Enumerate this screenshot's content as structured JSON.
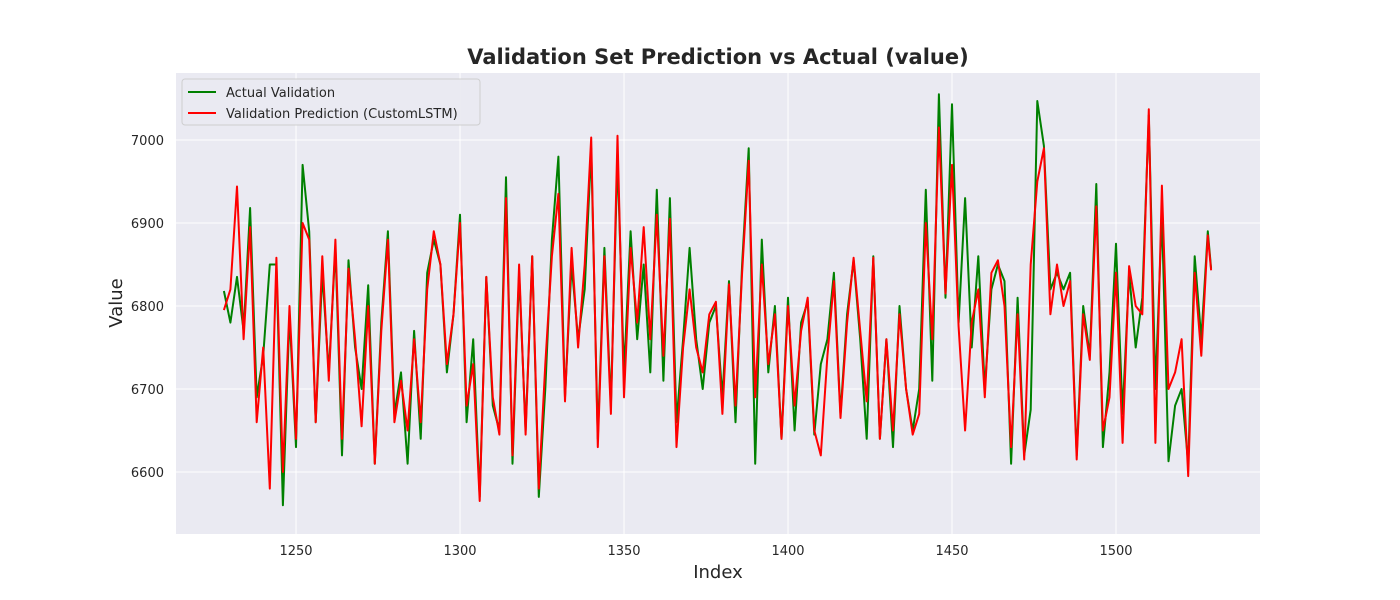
{
  "chart_data": {
    "type": "line",
    "title": "Validation Set Prediction vs Actual (value)",
    "xlabel": "Index",
    "ylabel": "Value",
    "x": [
      1228,
      1230,
      1232,
      1234,
      1236,
      1238,
      1240,
      1242,
      1244,
      1246,
      1248,
      1250,
      1252,
      1254,
      1256,
      1258,
      1260,
      1262,
      1264,
      1266,
      1268,
      1270,
      1272,
      1274,
      1276,
      1278,
      1280,
      1282,
      1284,
      1286,
      1288,
      1290,
      1292,
      1294,
      1296,
      1298,
      1300,
      1302,
      1304,
      1306,
      1308,
      1310,
      1312,
      1314,
      1316,
      1318,
      1320,
      1322,
      1324,
      1326,
      1328,
      1330,
      1332,
      1334,
      1336,
      1338,
      1340,
      1342,
      1344,
      1346,
      1348,
      1350,
      1352,
      1354,
      1356,
      1358,
      1360,
      1362,
      1364,
      1366,
      1368,
      1370,
      1372,
      1374,
      1376,
      1378,
      1380,
      1382,
      1384,
      1386,
      1388,
      1390,
      1392,
      1394,
      1396,
      1398,
      1400,
      1402,
      1404,
      1406,
      1408,
      1410,
      1412,
      1414,
      1416,
      1418,
      1420,
      1422,
      1424,
      1426,
      1428,
      1430,
      1432,
      1434,
      1436,
      1438,
      1440,
      1442,
      1444,
      1446,
      1448,
      1450,
      1452,
      1454,
      1456,
      1458,
      1460,
      1462,
      1464,
      1466,
      1468,
      1470,
      1472,
      1474,
      1476,
      1478,
      1480,
      1482,
      1484,
      1486,
      1488,
      1490,
      1492,
      1494,
      1496,
      1498,
      1500,
      1502,
      1504,
      1506,
      1508,
      1510,
      1512,
      1514,
      1516,
      1518,
      1520,
      1522,
      1524,
      1526,
      1528,
      1529
    ],
    "series": [
      {
        "name": "Actual Validation",
        "color": "#008000",
        "values": [
          6818,
          6780,
          6835,
          6770,
          6918,
          6690,
          6740,
          6850,
          6850,
          6560,
          6790,
          6630,
          6970,
          6890,
          6660,
          6840,
          6720,
          6870,
          6620,
          6855,
          6750,
          6700,
          6825,
          6610,
          6780,
          6890,
          6670,
          6720,
          6610,
          6770,
          6640,
          6840,
          6880,
          6850,
          6720,
          6790,
          6910,
          6660,
          6760,
          6570,
          6835,
          6680,
          6650,
          6955,
          6610,
          6840,
          6650,
          6860,
          6570,
          6700,
          6880,
          6980,
          6690,
          6850,
          6760,
          6820,
          6990,
          6640,
          6870,
          6680,
          6980,
          6720,
          6890,
          6760,
          6850,
          6720,
          6940,
          6710,
          6930,
          6660,
          6760,
          6870,
          6760,
          6700,
          6780,
          6800,
          6690,
          6830,
          6660,
          6850,
          6990,
          6610,
          6880,
          6720,
          6800,
          6640,
          6810,
          6650,
          6780,
          6805,
          6645,
          6730,
          6760,
          6840,
          6670,
          6790,
          6855,
          6760,
          6640,
          6860,
          6640,
          6760,
          6630,
          6800,
          6700,
          6650,
          6700,
          6940,
          6710,
          7055,
          6810,
          7043,
          6780,
          6930,
          6750,
          6860,
          6700,
          6820,
          6850,
          6830,
          6610,
          6810,
          6620,
          6675,
          7047,
          6993,
          6820,
          6840,
          6820,
          6840,
          6620,
          6800,
          6740,
          6947,
          6630,
          6720,
          6875,
          6670,
          6840,
          6750,
          6810,
          7030,
          6700,
          6910,
          6613,
          6680,
          6700,
          6610,
          6860,
          6760,
          6890,
          6845
        ]
      },
      {
        "name": "Validation Prediction (CustomLSTM)",
        "color": "#ff0000",
        "values": [
          6795,
          6820,
          6944,
          6760,
          6895,
          6660,
          6750,
          6580,
          6858,
          6600,
          6800,
          6640,
          6900,
          6880,
          6660,
          6860,
          6710,
          6880,
          6640,
          6845,
          6760,
          6655,
          6800,
          6610,
          6770,
          6880,
          6660,
          6710,
          6650,
          6760,
          6660,
          6820,
          6890,
          6850,
          6730,
          6790,
          6900,
          6680,
          6730,
          6565,
          6835,
          6690,
          6645,
          6930,
          6620,
          6850,
          6645,
          6860,
          6580,
          6730,
          6860,
          6935,
          6685,
          6870,
          6750,
          6850,
          7003,
          6630,
          6860,
          6670,
          7005,
          6690,
          6870,
          6780,
          6895,
          6760,
          6910,
          6740,
          6905,
          6630,
          6750,
          6820,
          6750,
          6720,
          6790,
          6805,
          6670,
          6826,
          6680,
          6840,
          6975,
          6690,
          6850,
          6730,
          6790,
          6640,
          6800,
          6680,
          6770,
          6810,
          6650,
          6620,
          6740,
          6830,
          6665,
          6780,
          6858,
          6770,
          6685,
          6858,
          6640,
          6760,
          6650,
          6790,
          6700,
          6645,
          6670,
          6900,
          6760,
          7015,
          6815,
          6970,
          6775,
          6650,
          6780,
          6820,
          6690,
          6840,
          6855,
          6800,
          6630,
          6790,
          6615,
          6850,
          6950,
          6990,
          6790,
          6850,
          6800,
          6830,
          6615,
          6790,
          6735,
          6920,
          6650,
          6690,
          6840,
          6635,
          6848,
          6800,
          6790,
          7037,
          6635,
          6945,
          6700,
          6720,
          6760,
          6595,
          6840,
          6740,
          6885,
          6843
        ]
      }
    ],
    "xlim": [
      1213.4,
      1543.9
    ],
    "ylim": [
      6525.3,
      7080.7
    ],
    "xticks": [
      1250,
      1300,
      1350,
      1400,
      1450,
      1500
    ],
    "yticks": [
      6600,
      6700,
      6800,
      6900,
      7000
    ],
    "grid": true,
    "legend": "upper left"
  }
}
